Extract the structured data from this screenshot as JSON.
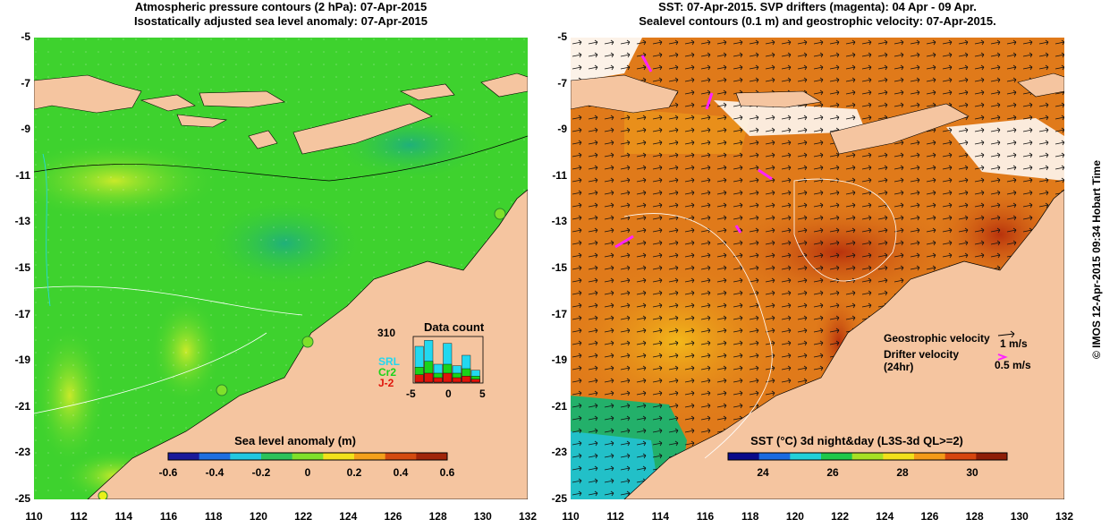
{
  "left_panel": {
    "title_line1": "Atmospheric pressure contours (2 hPa): 07-Apr-2015",
    "title_line2": "Isostatically adjusted sea level anomaly: 07-Apr-2015",
    "colorbar_title": "Sea level anomaly (m)",
    "colorbar_ticks": [
      "-0.6",
      "-0.4",
      "-0.2",
      "0",
      "0.2",
      "0.4",
      "0.6"
    ],
    "colorbar_colors": [
      "#1a1a9a",
      "#1f6fe0",
      "#22c7e0",
      "#2cc25a",
      "#7fe02a",
      "#f2e21a",
      "#f3a01a",
      "#d44a0f",
      "#a0250a"
    ],
    "inset": {
      "title": "Data count",
      "max_label": "310",
      "legend": [
        {
          "label": "SRL",
          "color": "#22d8f0"
        },
        {
          "label": "Cr2",
          "color": "#19d419"
        },
        {
          "label": "J-2",
          "color": "#e0140a"
        }
      ],
      "x_ticks": [
        "-5",
        "0",
        "5"
      ],
      "bars_srl": [
        120,
        140,
        60,
        130,
        55,
        90,
        40
      ],
      "bars_cr2": [
        50,
        70,
        30,
        60,
        30,
        45,
        20
      ],
      "bars_j2": [
        25,
        30,
        15,
        30,
        15,
        20,
        10
      ]
    }
  },
  "right_panel": {
    "title_line1": "SST: 07-Apr-2015. SVP drifters (magenta): 04 Apr - 09 Apr.",
    "title_line2": "Sealevel contours (0.1 m) and geostrophic velocity: 07-Apr-2015.",
    "colorbar_title": "SST (°C) 3d night&day (L3S-3d QL>=2)",
    "colorbar_ticks": [
      "24",
      "26",
      "28",
      "30"
    ],
    "colorbar_colors": [
      "#0a0a8a",
      "#1a6ae0",
      "#22d0d8",
      "#1fc84a",
      "#a6e024",
      "#f2e01a",
      "#f39a18",
      "#d6450e",
      "#8e1e08"
    ],
    "velocity_legend": {
      "geostrophic_label": "Geostrophic velocity",
      "geostrophic_scale": "1 m/s",
      "drifter_label_1": "Drifter velocity",
      "drifter_label_2": "(24hr)",
      "drifter_scale": "0.5 m/s"
    }
  },
  "axes": {
    "x_ticks": [
      "110",
      "112",
      "114",
      "116",
      "118",
      "120",
      "122",
      "124",
      "126",
      "128",
      "130",
      "132"
    ],
    "y_ticks": [
      "-5",
      "-7",
      "-9",
      "-11",
      "-13",
      "-15",
      "-17",
      "-19",
      "-21",
      "-23",
      "-25"
    ]
  },
  "credit": "© IMOS 12-Apr-2015 09:34 Hobart Time",
  "colors": {
    "land": "#f5c5a0",
    "ocean_left": "#3ed22e",
    "ocean_right": "#e07a1a",
    "drifter": "#ff22ff"
  }
}
